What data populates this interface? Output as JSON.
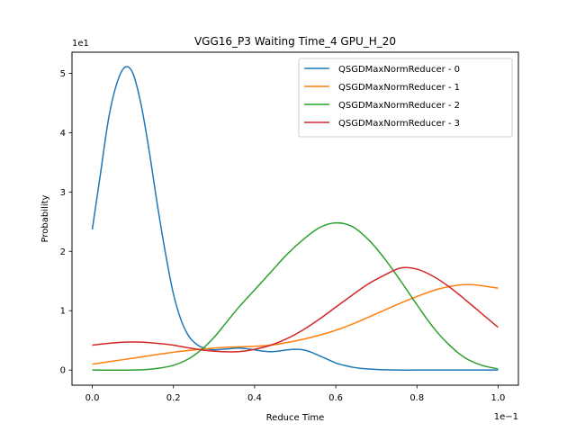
{
  "chart_data": {
    "type": "line",
    "title": "VGG16_P3 Waiting Time_4 GPU_H_20",
    "xlabel": "Reduce Time",
    "ylabel": "Probability",
    "x_offset_text": "1e−1",
    "y_offset_text": "1e1",
    "xlim": [
      -0.05,
      1.05
    ],
    "ylim": [
      -0.255,
      5.355
    ],
    "xticks": [
      0.0,
      0.2,
      0.4,
      0.6,
      0.8,
      1.0
    ],
    "xtick_labels": [
      "0.0",
      "0.2",
      "0.4",
      "0.6",
      "0.8",
      "1.0"
    ],
    "yticks": [
      0,
      1,
      2,
      3,
      4,
      5
    ],
    "ytick_labels": [
      "0",
      "1",
      "2",
      "3",
      "4",
      "5"
    ],
    "legend_position": "upper right",
    "grid": false,
    "series": [
      {
        "name": "QSGDMaxNormReducer - 0",
        "color": "#1f77b4",
        "x": [
          0.0,
          0.02,
          0.04,
          0.06,
          0.08,
          0.1,
          0.12,
          0.14,
          0.16,
          0.18,
          0.2,
          0.22,
          0.24,
          0.26,
          0.28,
          0.3,
          0.32,
          0.34,
          0.36,
          0.38,
          0.4,
          0.42,
          0.44,
          0.46,
          0.48,
          0.5,
          0.52,
          0.54,
          0.56,
          0.58,
          0.6,
          0.62,
          0.64,
          0.66,
          0.7,
          0.75,
          0.8,
          0.9,
          1.0
        ],
        "y": [
          2.37,
          3.3,
          4.23,
          4.82,
          5.1,
          5.0,
          4.48,
          3.7,
          2.8,
          1.98,
          1.28,
          0.82,
          0.55,
          0.42,
          0.36,
          0.34,
          0.35,
          0.36,
          0.37,
          0.36,
          0.34,
          0.32,
          0.31,
          0.32,
          0.34,
          0.35,
          0.34,
          0.3,
          0.24,
          0.18,
          0.12,
          0.08,
          0.05,
          0.03,
          0.01,
          0.0,
          0.0,
          0.0,
          0.0
        ]
      },
      {
        "name": "QSGDMaxNormReducer - 1",
        "color": "#ff7f0e",
        "x": [
          0.0,
          0.1,
          0.2,
          0.3,
          0.35,
          0.4,
          0.45,
          0.5,
          0.55,
          0.6,
          0.65,
          0.7,
          0.75,
          0.8,
          0.85,
          0.9,
          0.93,
          0.95,
          0.98,
          1.0
        ],
        "y": [
          0.1,
          0.2,
          0.3,
          0.37,
          0.39,
          0.4,
          0.43,
          0.49,
          0.57,
          0.67,
          0.8,
          0.95,
          1.1,
          1.24,
          1.36,
          1.43,
          1.44,
          1.43,
          1.4,
          1.38
        ]
      },
      {
        "name": "QSGDMaxNormReducer - 2",
        "color": "#2ca02c",
        "x": [
          0.0,
          0.1,
          0.15,
          0.2,
          0.24,
          0.27,
          0.3,
          0.33,
          0.36,
          0.4,
          0.44,
          0.48,
          0.52,
          0.56,
          0.6,
          0.64,
          0.68,
          0.72,
          0.76,
          0.8,
          0.84,
          0.88,
          0.92,
          0.96,
          1.0
        ],
        "y": [
          0.0,
          0.0,
          0.02,
          0.08,
          0.2,
          0.35,
          0.55,
          0.8,
          1.05,
          1.35,
          1.65,
          1.95,
          2.2,
          2.4,
          2.48,
          2.42,
          2.2,
          1.88,
          1.5,
          1.1,
          0.72,
          0.42,
          0.2,
          0.08,
          0.02
        ]
      },
      {
        "name": "QSGDMaxNormReducer - 3",
        "color": "#d62728",
        "x": [
          0.0,
          0.04,
          0.08,
          0.12,
          0.16,
          0.2,
          0.24,
          0.28,
          0.32,
          0.36,
          0.4,
          0.44,
          0.48,
          0.52,
          0.56,
          0.6,
          0.64,
          0.68,
          0.72,
          0.76,
          0.8,
          0.84,
          0.88,
          0.92,
          0.96,
          1.0
        ],
        "y": [
          0.42,
          0.45,
          0.47,
          0.47,
          0.45,
          0.42,
          0.37,
          0.33,
          0.31,
          0.31,
          0.35,
          0.42,
          0.53,
          0.68,
          0.86,
          1.06,
          1.26,
          1.45,
          1.6,
          1.72,
          1.7,
          1.58,
          1.4,
          1.18,
          0.95,
          0.72
        ]
      }
    ]
  }
}
